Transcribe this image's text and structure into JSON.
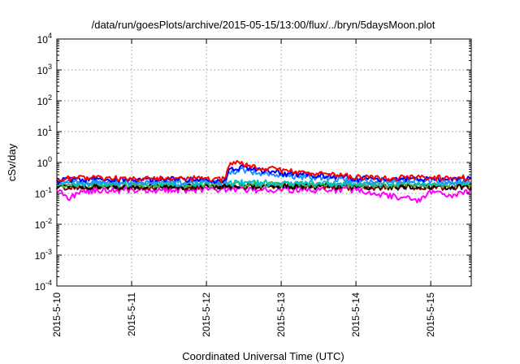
{
  "chart_data": {
    "type": "line",
    "title": "/data/run/goesPlots/archive/2015-05-15/13:00/flux/../bryn/5daysMoon.plot",
    "xlabel": "Coordinated Universal Time (UTC)",
    "ylabel": "cSv/day",
    "yscale": "log",
    "ylim": [
      0.0001,
      10000
    ],
    "y_ticks": [
      {
        "value": 0.0001,
        "base": "10",
        "exp": "-4"
      },
      {
        "value": 0.001,
        "base": "10",
        "exp": "-3"
      },
      {
        "value": 0.01,
        "base": "10",
        "exp": "-2"
      },
      {
        "value": 0.1,
        "base": "10",
        "exp": "-1"
      },
      {
        "value": 1,
        "base": "10",
        "exp": "0"
      },
      {
        "value": 10,
        "base": "10",
        "exp": "1"
      },
      {
        "value": 100,
        "base": "10",
        "exp": "2"
      },
      {
        "value": 1000,
        "base": "10",
        "exp": "3"
      },
      {
        "value": 10000,
        "base": "10",
        "exp": "4"
      }
    ],
    "xlim": [
      "2015-05-10",
      "2015-05-15 13:00"
    ],
    "x_ticks": [
      "2015-5-10",
      "2015-5-11",
      "2015-5-12",
      "2015-5-13",
      "2015-5-14",
      "2015-5-15"
    ],
    "grid": true,
    "series": [
      {
        "color": "#ff0000",
        "points": [
          [
            "2015-05-10 00:00",
            0.3
          ],
          [
            "2015-05-10 12:00",
            0.32
          ],
          [
            "2015-05-11 00:00",
            0.3
          ],
          [
            "2015-05-11 12:00",
            0.32
          ],
          [
            "2015-05-12 00:00",
            0.3
          ],
          [
            "2015-05-12 06:00",
            0.28
          ],
          [
            "2015-05-12 07:00",
            0.8
          ],
          [
            "2015-05-12 10:00",
            0.95
          ],
          [
            "2015-05-12 14:00",
            0.78
          ],
          [
            "2015-05-12 18:00",
            0.66
          ],
          [
            "2015-05-12 22:00",
            0.64
          ],
          [
            "2015-05-13 02:00",
            0.52
          ],
          [
            "2015-05-13 12:00",
            0.45
          ],
          [
            "2015-05-14 00:00",
            0.35
          ],
          [
            "2015-05-14 12:00",
            0.32
          ],
          [
            "2015-05-15 00:00",
            0.33
          ],
          [
            "2015-05-15 13:00",
            0.32
          ]
        ]
      },
      {
        "color": "#0000ff",
        "points": [
          [
            "2015-05-10 00:00",
            0.27
          ],
          [
            "2015-05-10 12:00",
            0.29
          ],
          [
            "2015-05-11 00:00",
            0.27
          ],
          [
            "2015-05-11 12:00",
            0.29
          ],
          [
            "2015-05-12 00:00",
            0.27
          ],
          [
            "2015-05-12 06:00",
            0.25
          ],
          [
            "2015-05-12 07:00",
            0.62
          ],
          [
            "2015-05-12 12:00",
            0.7
          ],
          [
            "2015-05-12 18:00",
            0.55
          ],
          [
            "2015-05-13 00:00",
            0.45
          ],
          [
            "2015-05-13 12:00",
            0.4
          ],
          [
            "2015-05-14 00:00",
            0.3
          ],
          [
            "2015-05-15 00:00",
            0.3
          ],
          [
            "2015-05-15 13:00",
            0.29
          ]
        ]
      },
      {
        "color": "#1e90ff",
        "points": [
          [
            "2015-05-10 00:00",
            0.24
          ],
          [
            "2015-05-11 00:00",
            0.24
          ],
          [
            "2015-05-12 00:00",
            0.24
          ],
          [
            "2015-05-12 06:00",
            0.22
          ],
          [
            "2015-05-12 07:00",
            0.48
          ],
          [
            "2015-05-12 12:00",
            0.56
          ],
          [
            "2015-05-12 18:00",
            0.45
          ],
          [
            "2015-05-13 00:00",
            0.38
          ],
          [
            "2015-05-13 12:00",
            0.33
          ],
          [
            "2015-05-14 00:00",
            0.26
          ],
          [
            "2015-05-15 00:00",
            0.26
          ],
          [
            "2015-05-15 13:00",
            0.25
          ]
        ]
      },
      {
        "color": "#00bfbf",
        "points": [
          [
            "2015-05-10 00:00",
            0.21
          ],
          [
            "2015-05-11 00:00",
            0.21
          ],
          [
            "2015-05-12 00:00",
            0.21
          ],
          [
            "2015-05-12 12:00",
            0.23
          ],
          [
            "2015-05-13 00:00",
            0.22
          ],
          [
            "2015-05-14 00:00",
            0.21
          ],
          [
            "2015-05-15 00:00",
            0.21
          ],
          [
            "2015-05-15 13:00",
            0.21
          ]
        ]
      },
      {
        "color": "#4caf50",
        "points": [
          [
            "2015-05-10 00:00",
            0.19
          ],
          [
            "2015-05-11 00:00",
            0.19
          ],
          [
            "2015-05-12 00:00",
            0.19
          ],
          [
            "2015-05-13 00:00",
            0.2
          ],
          [
            "2015-05-14 00:00",
            0.19
          ],
          [
            "2015-05-15 00:00",
            0.19
          ],
          [
            "2015-05-15 13:00",
            0.19
          ]
        ]
      },
      {
        "color": "#ff00ff",
        "points": [
          [
            "2015-05-10 00:00",
            0.13
          ],
          [
            "2015-05-10 04:00",
            0.07
          ],
          [
            "2015-05-10 08:00",
            0.12
          ],
          [
            "2015-05-11 00:00",
            0.13
          ],
          [
            "2015-05-12 00:00",
            0.13
          ],
          [
            "2015-05-13 00:00",
            0.13
          ],
          [
            "2015-05-14 00:00",
            0.13
          ],
          [
            "2015-05-14 20:00",
            0.06
          ],
          [
            "2015-05-15 00:00",
            0.12
          ],
          [
            "2015-05-15 06:00",
            0.08
          ],
          [
            "2015-05-15 13:00",
            0.12
          ]
        ]
      },
      {
        "color": "#8b0000",
        "points": [
          [
            "2015-05-10 00:00",
            0.16
          ],
          [
            "2015-05-11 00:00",
            0.16
          ],
          [
            "2015-05-12 00:00",
            0.16
          ],
          [
            "2015-05-13 00:00",
            0.17
          ],
          [
            "2015-05-14 00:00",
            0.16
          ],
          [
            "2015-05-15 00:00",
            0.16
          ],
          [
            "2015-05-15 13:00",
            0.16
          ]
        ]
      },
      {
        "color": "#000000",
        "points": [
          [
            "2015-05-10 00:00",
            0.17
          ],
          [
            "2015-05-11 00:00",
            0.17
          ],
          [
            "2015-05-12 00:00",
            0.17
          ],
          [
            "2015-05-13 00:00",
            0.18
          ],
          [
            "2015-05-14 00:00",
            0.17
          ],
          [
            "2015-05-15 00:00",
            0.17
          ],
          [
            "2015-05-15 13:00",
            0.17
          ]
        ]
      }
    ]
  }
}
